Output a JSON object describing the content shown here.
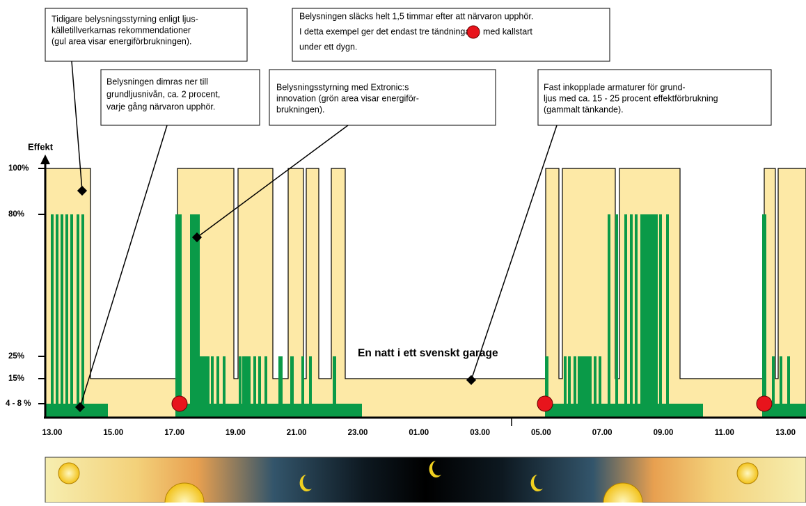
{
  "annotations": [
    {
      "lines": [
        "Tidigare belysningsstyrning enligt ljus-",
        "källetillverkarnas rekommendationer",
        "(gul area visar energiförbrukningen)."
      ]
    },
    {
      "lines": [
        "Belysningen släcks helt 1,5 timmar efter att närvaron upphör.",
        "I detta exempel ger det endast tre tändningar",
        "med kallstart",
        "under ett dygn."
      ]
    },
    {
      "lines": [
        "Belysningen dimras ner till",
        "grundljusnivån, ca. 2 procent,",
        "varje gång närvaron upphör."
      ]
    },
    {
      "lines": [
        "Belysningsstyrning med Extronic:s",
        "innovation (grön area visar energiför-",
        "brukningen)."
      ]
    },
    {
      "lines": [
        "Fast inkopplade armaturer för grund-",
        "ljus med ca. 15 - 25 procent effektförbrukning",
        "(gammalt tänkande)."
      ]
    }
  ],
  "y_axis_title": "Effekt",
  "y_ticks": [
    "100%",
    "80%",
    "25%",
    "15%",
    "4 - 8 %"
  ],
  "x_ticks": [
    "13.00",
    "15.00",
    "17.00",
    "19.00",
    "21.00",
    "23.00",
    "01.00",
    "03.00",
    "05.00",
    "07.00",
    "09.00",
    "11.00",
    "13.00"
  ],
  "title": "En natt i ett svenskt garage"
}
